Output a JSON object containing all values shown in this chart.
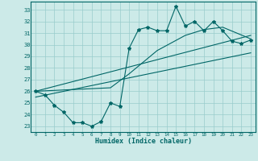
{
  "xlabel": "Humidex (Indice chaleur)",
  "bg_color": "#cceae8",
  "grid_color": "#99cccc",
  "line_color": "#006666",
  "xlim": [
    -0.5,
    23.5
  ],
  "ylim": [
    22.5,
    33.7
  ],
  "yticks": [
    23,
    24,
    25,
    26,
    27,
    28,
    29,
    30,
    31,
    32,
    33
  ],
  "xticks": [
    0,
    1,
    2,
    3,
    4,
    5,
    6,
    7,
    8,
    9,
    10,
    11,
    12,
    13,
    14,
    15,
    16,
    17,
    18,
    19,
    20,
    21,
    22,
    23
  ],
  "line1_x": [
    0,
    1,
    2,
    3,
    4,
    5,
    6,
    7,
    8,
    9,
    10,
    11,
    12,
    13,
    14,
    15,
    16,
    17,
    18,
    19,
    20,
    21,
    22,
    23
  ],
  "line1_y": [
    26.0,
    25.7,
    24.8,
    24.2,
    23.3,
    23.3,
    23.0,
    23.4,
    25.0,
    24.7,
    29.7,
    31.3,
    31.5,
    31.2,
    31.2,
    33.3,
    31.6,
    32.0,
    31.2,
    32.0,
    31.2,
    30.3,
    30.1,
    30.4
  ],
  "line2_x": [
    0,
    23
  ],
  "line2_y": [
    25.5,
    29.3
  ],
  "line3_x": [
    0,
    23
  ],
  "line3_y": [
    26.0,
    30.8
  ],
  "line4_x": [
    0,
    8,
    10,
    13,
    16,
    18,
    20,
    23
  ],
  "line4_y": [
    26.0,
    26.3,
    27.5,
    29.5,
    30.8,
    31.3,
    31.5,
    30.5
  ]
}
